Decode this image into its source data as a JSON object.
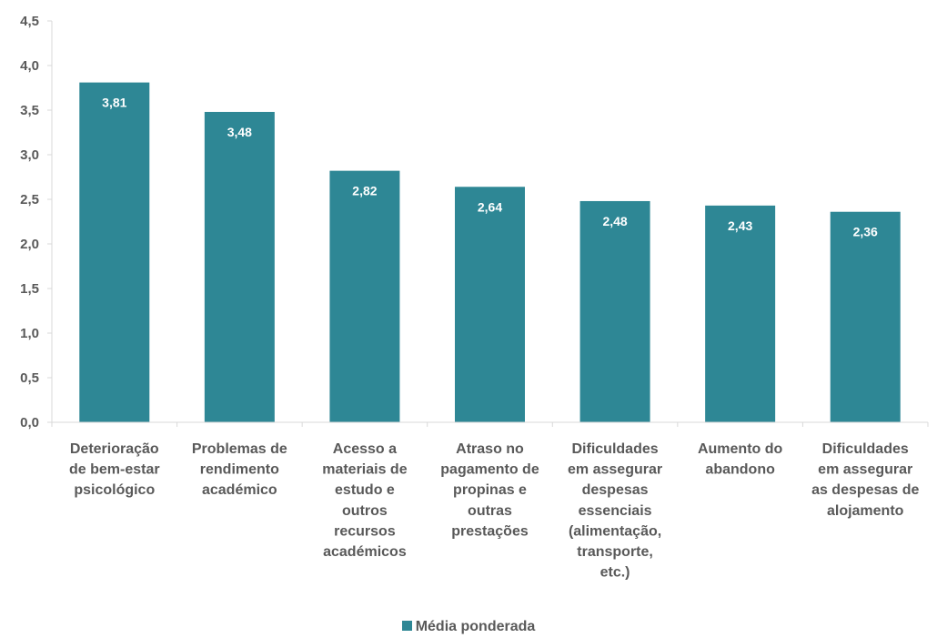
{
  "chart_data": {
    "type": "bar",
    "categories": [
      [
        "Deterioração",
        "de bem-estar",
        "psicológico"
      ],
      [
        "Problemas de",
        "rendimento",
        "académico"
      ],
      [
        "Acesso a",
        "materiais de",
        "estudo e",
        "outros",
        "recursos",
        "académicos"
      ],
      [
        "Atraso no",
        "pagamento de",
        "propinas e",
        "outras",
        "prestações"
      ],
      [
        "Dificuldades",
        "em assegurar",
        "despesas",
        "essenciais",
        "(alimentação,",
        "transporte,",
        "etc.)"
      ],
      [
        "Aumento do",
        "abandono"
      ],
      [
        "Dificuldades",
        "em assegurar",
        "as despesas de",
        "alojamento"
      ]
    ],
    "series": [
      {
        "name": "Média ponderada",
        "values": [
          3.81,
          3.48,
          2.82,
          2.64,
          2.48,
          2.43,
          2.36
        ],
        "value_labels": [
          "3,81",
          "3,48",
          "2,82",
          "2,64",
          "2,48",
          "2,43",
          "2,36"
        ],
        "color": "#2e8795"
      }
    ],
    "ylim": [
      0,
      4.5
    ],
    "yticks": [
      0,
      0.5,
      1,
      1.5,
      2,
      2.5,
      3,
      3.5,
      4,
      4.5
    ],
    "ytick_labels": [
      "0,0",
      "0,5",
      "1,0",
      "1,5",
      "2,0",
      "2,5",
      "3,0",
      "3,5",
      "4,0",
      "4,5"
    ],
    "grid": false,
    "legend_position": "bottom",
    "axis_color": "#d9d9d9"
  },
  "legend": {
    "label": "Média ponderada"
  }
}
